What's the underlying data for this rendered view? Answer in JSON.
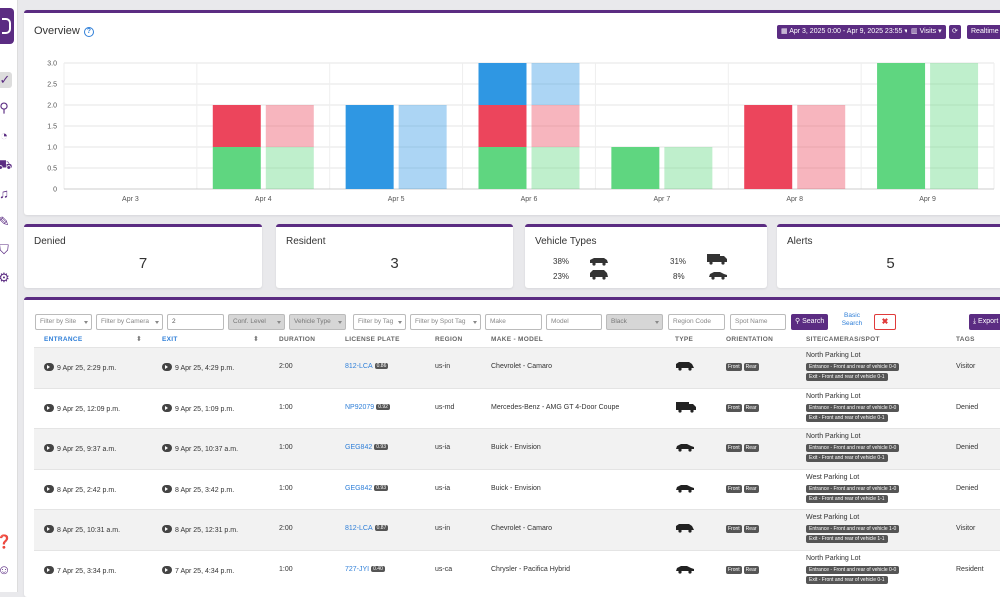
{
  "overview": {
    "title": "Overview",
    "date_range": "Apr 3, 2025 0:00 - Apr 9, 2025 23:55",
    "metric": "Visits",
    "realtime": "Realtime"
  },
  "colors": {
    "brand": "#5b2c82",
    "green": "#5fd680",
    "red": "#ec455c",
    "blue": "#2f97e3"
  },
  "chart_data": {
    "type": "bar",
    "stacked": true,
    "categories": [
      "Apr 3",
      "Apr 4",
      "Apr 5",
      "Apr 6",
      "Apr 7",
      "Apr 8",
      "Apr 9"
    ],
    "series": [
      {
        "color": "#5fd680",
        "values": [
          0,
          1,
          0,
          1,
          1,
          0,
          3
        ]
      },
      {
        "color": "#ec455c",
        "values": [
          0,
          1,
          0,
          1,
          0,
          2,
          0
        ]
      },
      {
        "color": "#2f97e3",
        "values": [
          0,
          0,
          2,
          1,
          0,
          0,
          0
        ]
      }
    ],
    "comparison_series_faded": true,
    "yticks": [
      "0",
      "0.5",
      "1.0",
      "1.5",
      "2.0",
      "2.5",
      "3.0"
    ],
    "ylim": [
      0,
      3
    ],
    "grid": true
  },
  "stats": {
    "denied": {
      "label": "Denied",
      "value": "7"
    },
    "resident": {
      "label": "Resident",
      "value": "3"
    },
    "vehicle_types": {
      "label": "Vehicle Types",
      "items": [
        {
          "pct": "38%",
          "icon": "van-icon"
        },
        {
          "pct": "31%",
          "icon": "truck-icon"
        },
        {
          "pct": "23%",
          "icon": "suv-icon"
        },
        {
          "pct": "8%",
          "icon": "car-icon"
        }
      ]
    },
    "alerts": {
      "label": "Alerts",
      "value": "5"
    }
  },
  "filters": {
    "site": "Filter by Site",
    "camera": "Filter by Camera",
    "count": "2",
    "conf": "Conf. Level",
    "vtype": "Vehicle Type",
    "tag": "Filter by Tag",
    "spot_tag": "Filter by Spot Tag",
    "make": "Make",
    "model": "Model",
    "color": "Black",
    "region": "Region Code",
    "spot": "Spot Name",
    "search": "Search",
    "basic1": "Basic",
    "basic2": "Search",
    "export": "Export"
  },
  "columns": [
    "ENTRANCE",
    "EXIT",
    "DURATION",
    "LICENSE PLATE",
    "REGION",
    "MAKE - MODEL",
    "TYPE",
    "ORIENTATION",
    "SITE/CAMERAS/SPOT",
    "TAGS"
  ],
  "rows": [
    {
      "entrance": "9 Apr 25, 2:29 p.m.",
      "exit": "9 Apr 25, 4:29 p.m.",
      "duration": "2:00",
      "plate": "812-LCA",
      "conf": "0.86",
      "region": "us-in",
      "make": "Chevrolet - Camaro",
      "type": "van-icon",
      "site": "North Parking Lot",
      "cam1": "Entrance - Front and rear of vehicle 0-0",
      "cam2": "Exit - Front and rear of vehicle 0-1",
      "tag": "Visitor"
    },
    {
      "entrance": "9 Apr 25, 12:09 p.m.",
      "exit": "9 Apr 25, 1:09 p.m.",
      "duration": "1:00",
      "plate": "NP92079",
      "conf": "0.92",
      "region": "us-md",
      "make": "Mercedes-Benz - AMG GT 4-Door Coupe",
      "type": "truck-icon",
      "site": "North Parking Lot",
      "cam1": "Entrance - Front and rear of vehicle 0-0",
      "cam2": "Exit - Front and rear of vehicle 0-1",
      "tag": "Denied"
    },
    {
      "entrance": "9 Apr 25, 9:37 a.m.",
      "exit": "9 Apr 25, 10:37 a.m.",
      "duration": "1:00",
      "plate": "GEG842",
      "conf": "0.93",
      "region": "us-ia",
      "make": "Buick - Envision",
      "type": "car-icon",
      "site": "North Parking Lot",
      "cam1": "Entrance - Front and rear of vehicle 0-0",
      "cam2": "Exit - Front and rear of vehicle 0-1",
      "tag": "Denied"
    },
    {
      "entrance": "8 Apr 25, 2:42 p.m.",
      "exit": "8 Apr 25, 3:42 p.m.",
      "duration": "1:00",
      "plate": "GEG842",
      "conf": "0.93",
      "region": "us-ia",
      "make": "Buick - Envision",
      "type": "car-icon",
      "site": "West Parking Lot",
      "cam1": "Entrance - Front and rear of vehicle 1-0",
      "cam2": "Exit - Front and rear of vehicle 1-1",
      "tag": "Denied"
    },
    {
      "entrance": "8 Apr 25, 10:31 a.m.",
      "exit": "8 Apr 25, 12:31 p.m.",
      "duration": "2:00",
      "plate": "812-LCA",
      "conf": "0.87",
      "region": "us-in",
      "make": "Chevrolet - Camaro",
      "type": "van-icon",
      "site": "West Parking Lot",
      "cam1": "Entrance - Front and rear of vehicle 1-0",
      "cam2": "Exit - Front and rear of vehicle 1-1",
      "tag": "Visitor"
    },
    {
      "entrance": "7 Apr 25, 3:34 p.m.",
      "exit": "7 Apr 25, 4:34 p.m.",
      "duration": "1:00",
      "plate": "727-JYI",
      "conf": "0.40",
      "region": "us-ca",
      "make": "Chrysler - Pacifica Hybrid",
      "type": "car-icon",
      "site": "North Parking Lot",
      "cam1": "Entrance - Front and rear of vehicle 0-0",
      "cam2": "Exit - Front and rear of vehicle 0-1",
      "tag": "Resident"
    }
  ],
  "orientation": {
    "front": "Front",
    "rear": "Rear"
  }
}
